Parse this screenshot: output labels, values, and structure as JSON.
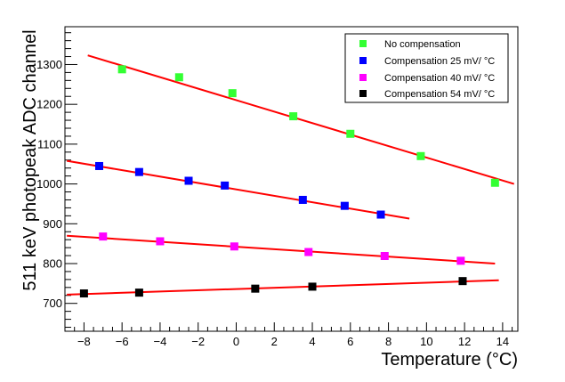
{
  "chart_data": {
    "type": "scatter",
    "title": "",
    "xlabel": "Temperature (",
    "xlabel_unit": "°C",
    "xlabel_close": ")",
    "ylabel": "511 keV photopeak ADC channel",
    "xlim": [
      -9,
      14.8
    ],
    "ylim": [
      630,
      1395
    ],
    "x_ticks": [
      -8,
      -6,
      -4,
      -2,
      0,
      2,
      4,
      6,
      8,
      10,
      12,
      14
    ],
    "y_ticks": [
      700,
      800,
      900,
      1000,
      1100,
      1200,
      1300
    ],
    "x_tick_labels": [
      "−8",
      "−6",
      "−4",
      "−2",
      "0",
      "2",
      "4",
      "6",
      "8",
      "10",
      "12",
      "14"
    ],
    "y_tick_labels": [
      "700",
      "800",
      "900",
      "1000",
      "1100",
      "1200",
      "1300"
    ],
    "legend_position": "top-right",
    "fit_color": "#ff0000",
    "series": [
      {
        "name": "No compensation",
        "color": "#33ff33",
        "x": [
          -6.0,
          -3.0,
          -0.2,
          3.0,
          6.0,
          9.7,
          13.6
        ],
        "y": [
          1288,
          1268,
          1228,
          1170,
          1126,
          1070,
          1003
        ],
        "fit": {
          "x": [
            -7.8,
            14.6
          ],
          "y": [
            1323,
            1000
          ]
        }
      },
      {
        "name": "Compensation 25 mV/ °C",
        "color": "#0000ff",
        "x": [
          -7.2,
          -5.1,
          -2.5,
          -0.6,
          3.5,
          5.7,
          7.6
        ],
        "y": [
          1045,
          1030,
          1008,
          996,
          960,
          945,
          923
        ],
        "fit": {
          "x": [
            -8.9,
            9.1
          ],
          "y": [
            1058,
            913
          ]
        }
      },
      {
        "name": "Compensation 40 mV/ °C",
        "color": "#ff00ff",
        "x": [
          -7.0,
          -4.0,
          -0.1,
          3.8,
          7.8,
          11.8
        ],
        "y": [
          868,
          856,
          843,
          829,
          819,
          807
        ],
        "fit": {
          "x": [
            -8.9,
            13.6
          ],
          "y": [
            870,
            800
          ]
        }
      },
      {
        "name": "Compensation 54 mV/ °C",
        "color": "#000000",
        "x": [
          -8.0,
          -5.1,
          1.0,
          4.0,
          11.9
        ],
        "y": [
          725,
          727,
          737,
          742,
          756
        ],
        "fit": {
          "x": [
            -8.9,
            13.8
          ],
          "y": [
            722,
            758
          ]
        }
      }
    ]
  }
}
